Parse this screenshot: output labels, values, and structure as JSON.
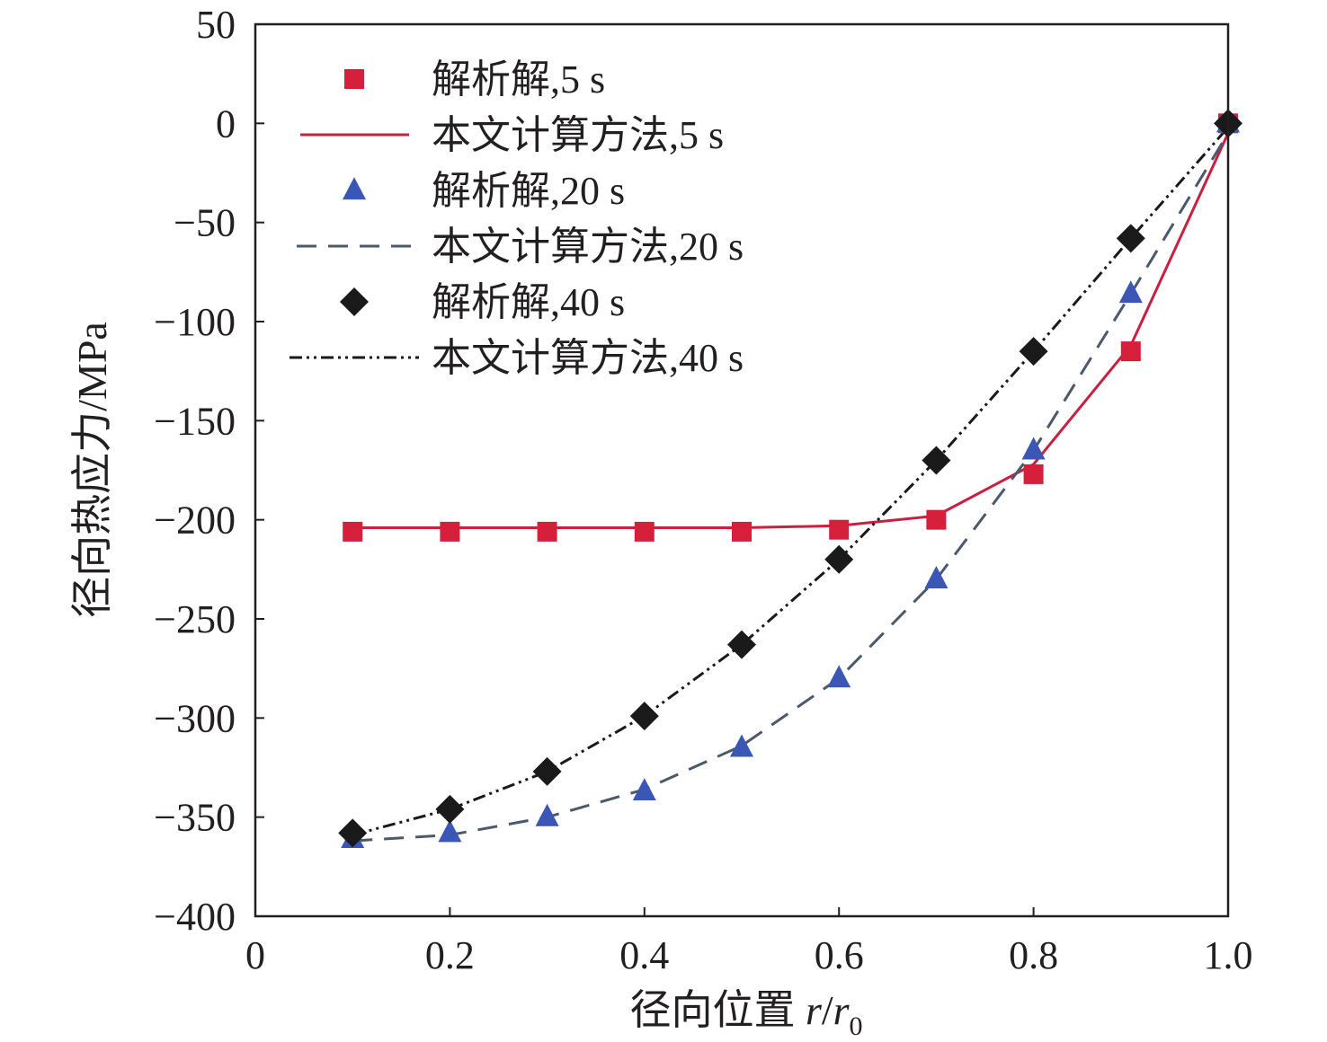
{
  "chart_data": {
    "type": "line",
    "xlabel": "径向位置 r/r0",
    "xlabel_parts": {
      "prefix": "径向位置 ",
      "r": "r",
      "slash": "/",
      "r0": "r",
      "sub": "0"
    },
    "ylabel": "径向热应力/MPa",
    "xlim": [
      0,
      1.0
    ],
    "ylim": [
      -400,
      50
    ],
    "x_ticks": [
      "0",
      "0.2",
      "0.4",
      "0.6",
      "0.8",
      "1.0"
    ],
    "x_tick_values": [
      0,
      0.2,
      0.4,
      0.6,
      0.8,
      1.0
    ],
    "y_ticks": [
      "50",
      "0",
      "−50",
      "−100",
      "−150",
      "−200",
      "−250",
      "−300",
      "−350",
      "−400"
    ],
    "y_tick_values": [
      50,
      0,
      -50,
      -100,
      -150,
      -200,
      -250,
      -300,
      -350,
      -400
    ],
    "grid": false,
    "legend_position": "top-left",
    "x": [
      0.1,
      0.2,
      0.3,
      0.4,
      0.5,
      0.6,
      0.7,
      0.8,
      0.9,
      1.0
    ],
    "series": [
      {
        "name": "解析解,5 s",
        "kind": "markers",
        "marker": "square",
        "color": "#d61f3b",
        "values": [
          -206,
          -206,
          -206,
          -206,
          -206,
          -205,
          -200,
          -177,
          -115,
          0
        ]
      },
      {
        "name": "本文计算方法,5 s",
        "kind": "line",
        "dash": "solid",
        "color": "#c8203e",
        "values": [
          -204,
          -204,
          -204,
          -204,
          -204,
          -203,
          -198,
          -172,
          -112,
          -5
        ]
      },
      {
        "name": "解析解,20 s",
        "kind": "markers",
        "marker": "triangle",
        "color": "#3a57b5",
        "values": [
          -361,
          -358,
          -350,
          -337,
          -315,
          -280,
          -230,
          -165,
          -86,
          0
        ]
      },
      {
        "name": "本文计算方法,20 s",
        "kind": "line",
        "dash": "dashed",
        "color": "#4a5a6c",
        "values": [
          -362,
          -359,
          -350,
          -336,
          -314,
          -280,
          -230,
          -165,
          -86,
          -5
        ]
      },
      {
        "name": "解析解,40 s",
        "kind": "markers",
        "marker": "diamond",
        "color": "#1a1a1a",
        "values": [
          -358,
          -346,
          -327,
          -299,
          -263,
          -220,
          -170,
          -115,
          -58,
          0
        ]
      },
      {
        "name": "本文计算方法,40 s",
        "kind": "line",
        "dash": "dash-dot-dot",
        "color": "#1a1a1a",
        "values": [
          -359,
          -346,
          -327,
          -299,
          -263,
          -220,
          -170,
          -115,
          -58,
          -2
        ]
      }
    ]
  }
}
